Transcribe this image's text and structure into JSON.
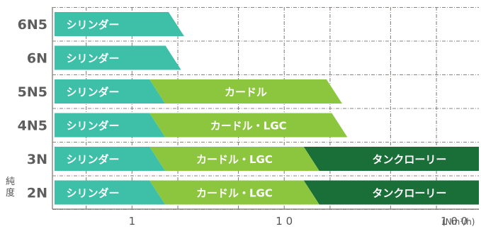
{
  "chart_data": {
    "type": "bar",
    "orientation": "horizontal",
    "x_scale": "log",
    "xlim": [
      0.3,
      190
    ],
    "x_ticks": [
      {
        "value": 1,
        "label": "1"
      },
      {
        "value": 10,
        "label": "1 0"
      },
      {
        "value": 100,
        "label": "1 0 0"
      }
    ],
    "x_unit": "(Nm³/h)",
    "y_axis_label": "純度",
    "grid": true,
    "colors": {
      "cylinder": "#3dbfa8",
      "curdle": "#8cc63f",
      "tanklorry": "#1a6e37"
    },
    "rows": [
      {
        "label": "6N5",
        "segments": [
          {
            "name": "シリンダー",
            "kind": "cylinder",
            "start": 0.3,
            "end": 2.2
          }
        ]
      },
      {
        "label": "6N",
        "segments": [
          {
            "name": "シリンダー",
            "kind": "cylinder",
            "start": 0.3,
            "end": 2.1
          }
        ]
      },
      {
        "label": "5N5",
        "segments": [
          {
            "name": "シリンダー",
            "kind": "cylinder",
            "start": 0.3,
            "end": 1.65
          },
          {
            "name": "カードル",
            "kind": "curdle",
            "start": 1.65,
            "end": 24
          }
        ]
      },
      {
        "label": "4N5",
        "segments": [
          {
            "name": "シリンダー",
            "kind": "cylinder",
            "start": 0.3,
            "end": 1.65
          },
          {
            "name": "カードル・LGC",
            "kind": "curdle",
            "start": 1.65,
            "end": 26
          }
        ]
      },
      {
        "label": "3N",
        "segments": [
          {
            "name": "シリンダー",
            "kind": "cylinder",
            "start": 0.3,
            "end": 1.65
          },
          {
            "name": "カードル・LGC",
            "kind": "curdle",
            "start": 1.65,
            "end": 17
          },
          {
            "name": "タンクローリー",
            "kind": "tanklorry",
            "start": 17,
            "end": 190
          }
        ]
      },
      {
        "label": "2N",
        "segments": [
          {
            "name": "シリンダー",
            "kind": "cylinder",
            "start": 0.3,
            "end": 1.65
          },
          {
            "name": "カードル・LGC",
            "kind": "curdle",
            "start": 1.65,
            "end": 17
          },
          {
            "name": "タンクローリー",
            "kind": "tanklorry",
            "start": 17,
            "end": 190
          }
        ]
      }
    ]
  }
}
